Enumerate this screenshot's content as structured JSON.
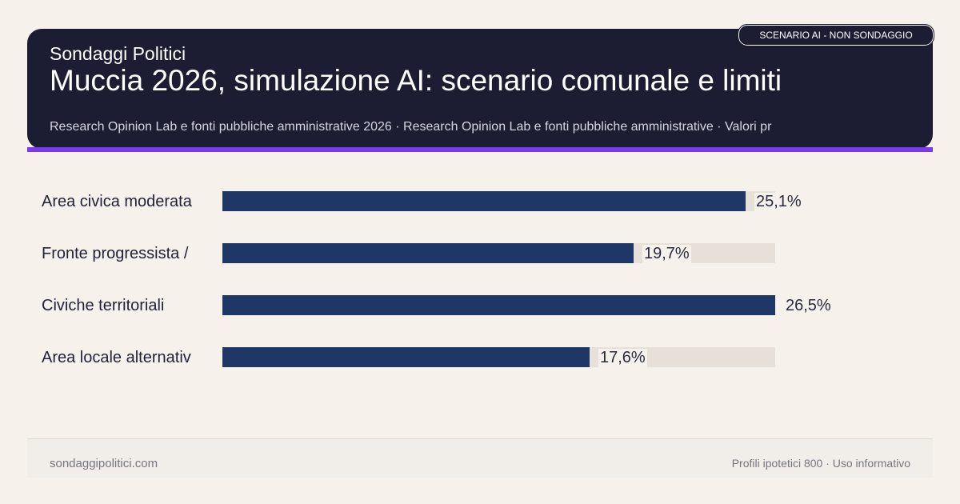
{
  "header": {
    "brand": "Sondaggi Politici",
    "title": "Muccia 2026, simulazione AI: scenario comunale e limiti",
    "subtitle": "Research Opinion Lab e fonti pubbliche amministrative 2026 · Research Opinion Lab e fonti pubbliche amministrative · Valori pr",
    "badge": "SCENARIO AI - NON SONDAGGIO"
  },
  "colors": {
    "header_bg": "#1c1c33",
    "accent": "#7c3aed",
    "bar": "#1e3766",
    "track": "#e7e0d8",
    "background": "#f6f2eb"
  },
  "chart_data": {
    "type": "bar",
    "orientation": "horizontal",
    "categories": [
      "Area civica moderata",
      "Fronte progressista /",
      "Civiche territoriali",
      "Area locale alternativ"
    ],
    "values": [
      25.1,
      19.7,
      26.5,
      17.6
    ],
    "value_labels": [
      "25,1%",
      "19,7%",
      "26,5%",
      "17,6%"
    ],
    "xlim": [
      0,
      26.5
    ],
    "grid": false,
    "legend": "none"
  },
  "footer": {
    "left": "sondaggipolitici.com",
    "right": "Profili ipotetici 800 · Uso informativo"
  }
}
